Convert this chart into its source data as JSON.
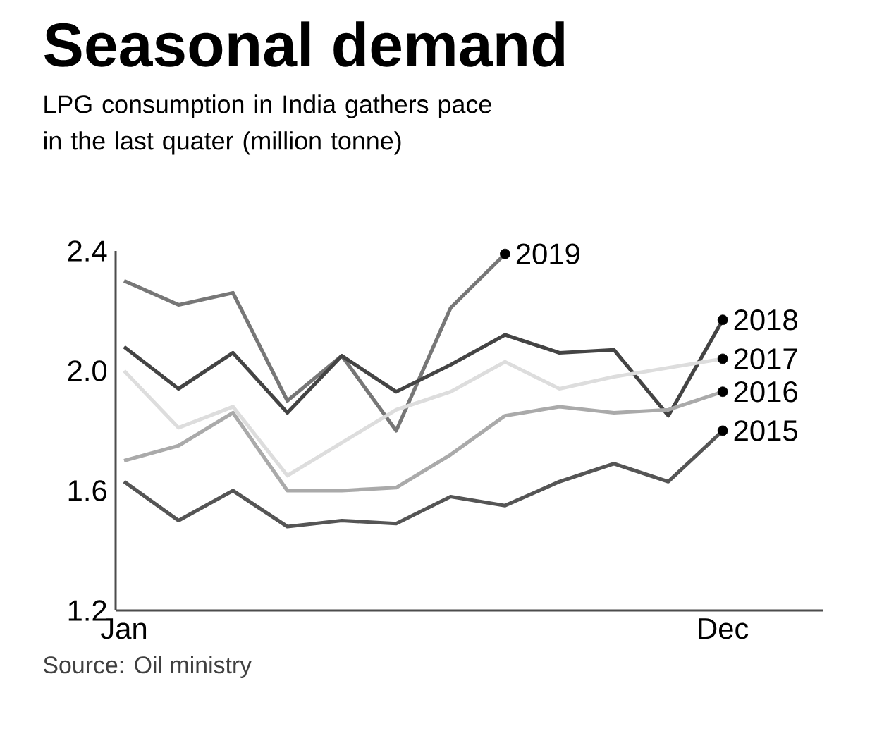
{
  "chart_data": {
    "type": "line",
    "title": "Seasonal demand",
    "subtitle": "LPG consumption in India gathers pace in the last quater (million tonne)",
    "categories": [
      "Jan",
      null,
      null,
      null,
      null,
      null,
      null,
      null,
      null,
      null,
      null,
      "Dec"
    ],
    "series": [
      {
        "name": "2019",
        "color": "#777777",
        "values": [
          2.3,
          2.22,
          2.26,
          1.9,
          2.05,
          1.8,
          2.21,
          2.39,
          null,
          null,
          null,
          null
        ]
      },
      {
        "name": "2018",
        "color": "#444444",
        "values": [
          2.08,
          1.94,
          2.06,
          1.86,
          2.05,
          1.93,
          2.02,
          2.12,
          2.06,
          2.07,
          1.85,
          2.17
        ]
      },
      {
        "name": "2017",
        "color": "#dddddd",
        "values": [
          2.0,
          1.81,
          1.88,
          1.65,
          1.76,
          1.87,
          1.93,
          2.03,
          1.94,
          1.98,
          2.01,
          2.04
        ]
      },
      {
        "name": "2016",
        "color": "#aaaaaa",
        "values": [
          1.7,
          1.75,
          1.86,
          1.6,
          1.6,
          1.61,
          1.72,
          1.85,
          1.88,
          1.86,
          1.87,
          1.93
        ]
      },
      {
        "name": "2015",
        "color": "#555555",
        "values": [
          1.63,
          1.5,
          1.6,
          1.48,
          1.5,
          1.49,
          1.58,
          1.55,
          1.63,
          1.69,
          1.63,
          1.8
        ]
      }
    ],
    "ylim": [
      1.2,
      2.4
    ],
    "yticks": [
      1.2,
      1.6,
      {
        "value": 2.0,
        "label": "2.0"
      },
      2.4
    ],
    "grid": false,
    "annotations": [
      "Source: Oil ministry"
    ]
  }
}
